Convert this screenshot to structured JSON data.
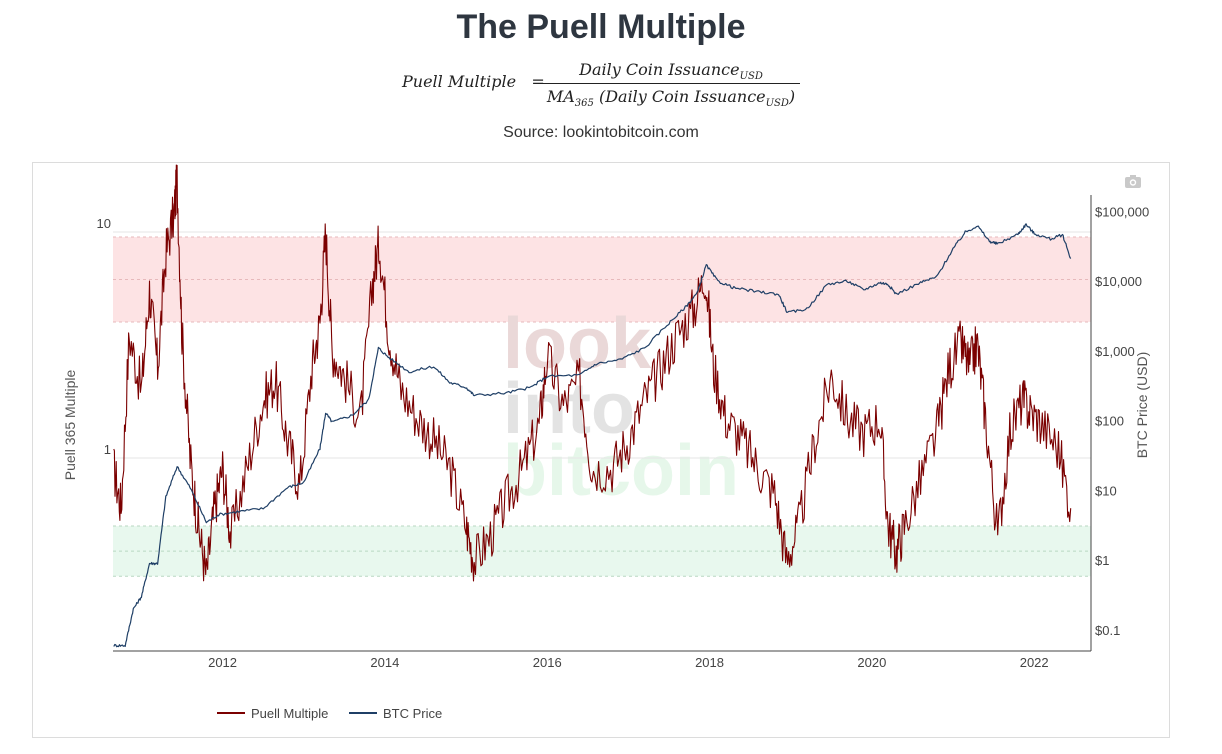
{
  "header": {
    "title": "The Puell Multiple",
    "formula": {
      "lhs": "Puell Multiple",
      "num_main": "Daily Coin Issuance",
      "num_sub": "USD",
      "den_prefix": "MA",
      "den_prefix_sub": "365",
      "den_main": "(Daily Coin Issuance",
      "den_sub": "USD",
      "den_suffix": ")"
    },
    "source": "Source: lookintobitcoin.com"
  },
  "icons": {
    "camera": "camera-icon"
  },
  "watermark": {
    "line1": "look",
    "line2": "into",
    "line3": "bitcoin"
  },
  "colors": {
    "puell": "#7b0000",
    "btc": "#1f3f66",
    "red_band": "#fde3e4",
    "green_band": "#e8f8ee"
  },
  "chart_data": {
    "type": "line",
    "title": "",
    "xlabel": "",
    "ylabel_left": "Puell 365 Multiple",
    "ylabel_right": "BTC Price (USD)",
    "y_left_scale": "log",
    "y_left_range": [
      0.14,
      14
    ],
    "y_right_scale": "log",
    "y_right_range": [
      0.05,
      150000
    ],
    "x_range": [
      2010.65,
      2022.7
    ],
    "x_ticks": [
      {
        "value": 2012,
        "label": "2012"
      },
      {
        "value": 2014,
        "label": "2014"
      },
      {
        "value": 2016,
        "label": "2016"
      },
      {
        "value": 2018,
        "label": "2018"
      },
      {
        "value": 2020,
        "label": "2020"
      },
      {
        "value": 2022,
        "label": "2022"
      }
    ],
    "y_left_ticks": [
      {
        "value": 1,
        "label": "1"
      },
      {
        "value": 10,
        "label": "10"
      }
    ],
    "y_right_ticks": [
      {
        "value": 0.1,
        "label": "$0.1"
      },
      {
        "value": 1,
        "label": "$1"
      },
      {
        "value": 10,
        "label": "$10"
      },
      {
        "value": 100,
        "label": "$100"
      },
      {
        "value": 1000,
        "label": "$1,000"
      },
      {
        "value": 10000,
        "label": "$10,000"
      },
      {
        "value": 100000,
        "label": "$100,000"
      }
    ],
    "bands": [
      {
        "zone": "red",
        "axis": "left",
        "from": 4,
        "to": 9.5
      },
      {
        "zone": "green",
        "axis": "left",
        "from": 0.3,
        "to": 0.5
      }
    ],
    "legend_position": "bottom-left",
    "series": [
      {
        "name": "Puell Multiple",
        "axis": "left",
        "x": [
          2010.66,
          2010.75,
          2010.85,
          2011.0,
          2011.1,
          2011.2,
          2011.3,
          2011.4,
          2011.44,
          2011.5,
          2011.6,
          2011.7,
          2011.8,
          2011.9,
          2012.0,
          2012.1,
          2012.3,
          2012.5,
          2012.65,
          2012.8,
          2012.95,
          2013.1,
          2013.2,
          2013.27,
          2013.35,
          2013.5,
          2013.7,
          2013.85,
          2013.93,
          2014.05,
          2014.2,
          2014.4,
          2014.6,
          2014.8,
          2015.0,
          2015.1,
          2015.3,
          2015.5,
          2015.7,
          2015.9,
          2016.0,
          2016.2,
          2016.4,
          2016.55,
          2016.8,
          2017.0,
          2017.2,
          2017.4,
          2017.6,
          2017.8,
          2017.95,
          2018.05,
          2018.2,
          2018.4,
          2018.6,
          2018.8,
          2018.95,
          2019.1,
          2019.3,
          2019.5,
          2019.7,
          2019.9,
          2020.1,
          2020.2,
          2020.3,
          2020.4,
          2020.6,
          2020.8,
          2020.95,
          2021.1,
          2021.2,
          2021.3,
          2021.4,
          2021.55,
          2021.7,
          2021.85,
          2021.95,
          2022.1,
          2022.3,
          2022.45
        ],
        "y": [
          0.9,
          0.6,
          3.5,
          2.0,
          5.5,
          2.5,
          8.0,
          12.0,
          17.0,
          3.5,
          1.0,
          0.5,
          0.3,
          0.6,
          0.9,
          0.45,
          0.9,
          1.8,
          2.2,
          1.2,
          0.75,
          2.5,
          4.0,
          10.0,
          3.0,
          2.3,
          1.5,
          6.0,
          9.0,
          3.5,
          2.0,
          1.5,
          1.2,
          0.9,
          0.5,
          0.35,
          0.45,
          0.65,
          0.9,
          1.4,
          2.8,
          1.7,
          2.2,
          0.9,
          0.9,
          1.2,
          1.8,
          2.5,
          3.5,
          4.5,
          6.5,
          2.5,
          1.5,
          1.2,
          0.9,
          0.7,
          0.35,
          0.5,
          1.2,
          2.3,
          1.5,
          1.3,
          1.5,
          0.5,
          0.38,
          0.5,
          0.8,
          1.3,
          2.5,
          3.2,
          2.5,
          3.2,
          1.5,
          0.45,
          1.3,
          1.8,
          1.6,
          1.4,
          1.1,
          0.6
        ]
      },
      {
        "name": "BTC Price",
        "axis": "right",
        "x": [
          2010.66,
          2010.8,
          2010.9,
          2011.0,
          2011.1,
          2011.2,
          2011.3,
          2011.44,
          2011.6,
          2011.8,
          2011.95,
          2012.2,
          2012.5,
          2012.8,
          2013.0,
          2013.2,
          2013.27,
          2013.35,
          2013.6,
          2013.8,
          2013.92,
          2014.05,
          2014.3,
          2014.6,
          2014.8,
          2015.0,
          2015.1,
          2015.5,
          2015.8,
          2016.0,
          2016.4,
          2016.6,
          2016.9,
          2017.2,
          2017.5,
          2017.7,
          2017.85,
          2017.96,
          2018.1,
          2018.3,
          2018.6,
          2018.85,
          2018.96,
          2019.2,
          2019.45,
          2019.7,
          2019.9,
          2020.1,
          2020.2,
          2020.3,
          2020.6,
          2020.8,
          2021.0,
          2021.15,
          2021.3,
          2021.45,
          2021.55,
          2021.8,
          2021.9,
          2022.0,
          2022.2,
          2022.35,
          2022.45
        ],
        "y": [
          0.06,
          0.06,
          0.2,
          0.3,
          0.9,
          0.9,
          8.0,
          22.0,
          11.0,
          3.5,
          4.5,
          5.0,
          5.5,
          11.0,
          13.0,
          40.0,
          130.0,
          95.0,
          120.0,
          200.0,
          1100.0,
          800.0,
          500.0,
          600.0,
          350.0,
          300.0,
          230.0,
          250.0,
          300.0,
          430.0,
          450.0,
          650.0,
          750.0,
          1100.0,
          2500.0,
          4200.0,
          6800.0,
          17000.0,
          10000.0,
          8000.0,
          7000.0,
          6500.0,
          3500.0,
          4000.0,
          9000.0,
          10000.0,
          7500.0,
          9500.0,
          9000.0,
          6500.0,
          9500.0,
          11500.0,
          29000.0,
          50000.0,
          62000.0,
          37000.0,
          34000.0,
          47000.0,
          65000.0,
          48000.0,
          40000.0,
          46000.0,
          21000.0
        ]
      }
    ]
  }
}
